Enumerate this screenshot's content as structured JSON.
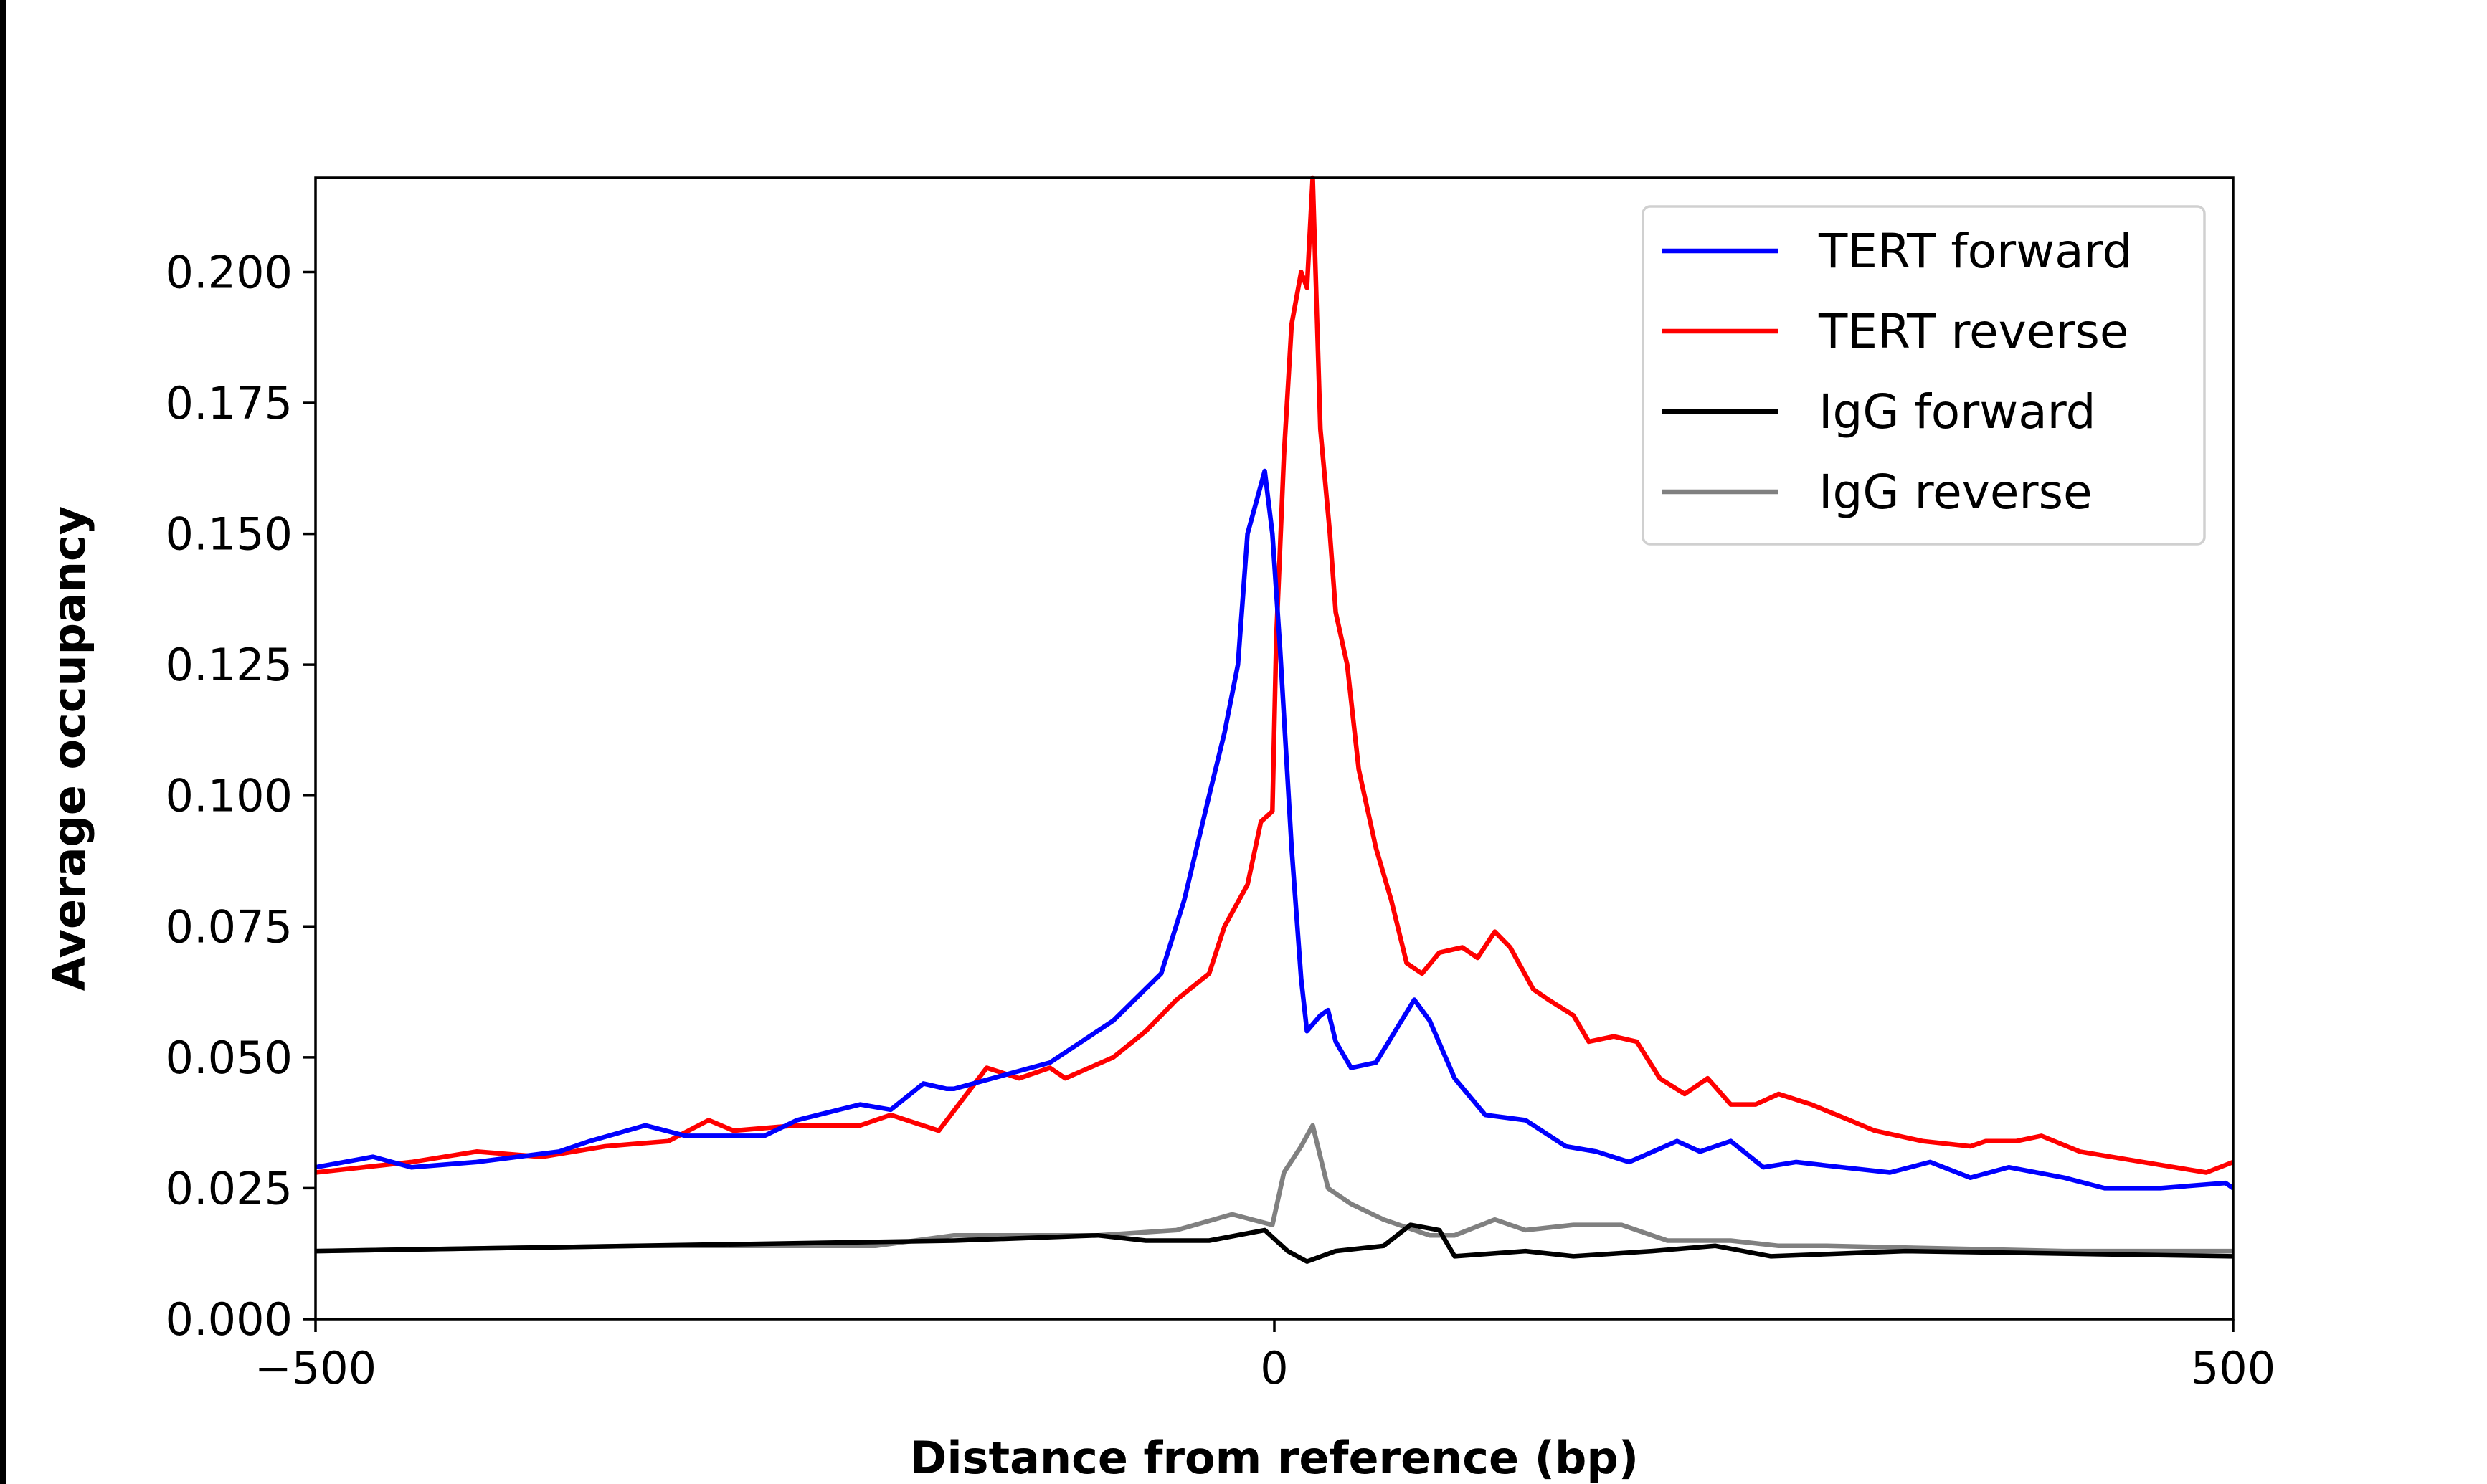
{
  "chart_data": {
    "type": "line",
    "title": "",
    "xlabel": "Distance from reference (bp)",
    "ylabel": "Average occupancy",
    "xlim": [
      -500,
      500
    ],
    "ylim": [
      0,
      0.218
    ],
    "xticks": [
      -500,
      0,
      500
    ],
    "xtick_labels": [
      "−500",
      "0",
      "500"
    ],
    "yticks": [
      0,
      0.025,
      0.05,
      0.075,
      0.1,
      0.125,
      0.15,
      0.175,
      0.2
    ],
    "ytick_labels": [
      "0.000",
      "0.025",
      "0.050",
      "0.075",
      "0.100",
      "0.125",
      "0.150",
      "0.175",
      "0.200"
    ],
    "grid": false,
    "legend_position": "top-right",
    "series": [
      {
        "name": "TERT forward",
        "color": "#0000ff",
        "x": [
          -500,
          -470,
          -450,
          -416,
          -373,
          -357,
          -328,
          -307,
          -266,
          -249,
          -216,
          -200,
          -183,
          -171,
          -167,
          -117,
          -84,
          -59,
          -47,
          -34,
          -26,
          -19,
          -14,
          -5,
          -1,
          3,
          9,
          14,
          17,
          24,
          28,
          32,
          40,
          53,
          63,
          73,
          81,
          94,
          110,
          131,
          152,
          168,
          185,
          210,
          222,
          238,
          255,
          272,
          296,
          321,
          342,
          363,
          383,
          412,
          433,
          462,
          496,
          500
        ],
        "y": [
          0.029,
          0.031,
          0.029,
          0.03,
          0.032,
          0.034,
          0.037,
          0.035,
          0.035,
          0.038,
          0.041,
          0.04,
          0.045,
          0.044,
          0.044,
          0.049,
          0.057,
          0.066,
          0.08,
          0.1,
          0.112,
          0.125,
          0.15,
          0.162,
          0.15,
          0.128,
          0.09,
          0.065,
          0.055,
          0.058,
          0.059,
          0.053,
          0.048,
          0.049,
          0.055,
          0.061,
          0.057,
          0.046,
          0.039,
          0.038,
          0.033,
          0.032,
          0.03,
          0.034,
          0.032,
          0.034,
          0.029,
          0.03,
          0.029,
          0.028,
          0.03,
          0.027,
          0.029,
          0.027,
          0.025,
          0.025,
          0.026,
          0.025
        ]
      },
      {
        "name": "TERT reverse",
        "color": "#ff0000",
        "x": [
          -500,
          -450,
          -416,
          -382,
          -349,
          -316,
          -295,
          -282,
          -249,
          -216,
          -200,
          -175,
          -150,
          -133,
          -117,
          -109,
          -84,
          -67,
          -51,
          -34,
          -26,
          -14,
          -7,
          -1,
          1,
          5,
          9,
          14,
          17,
          20,
          24,
          29,
          32,
          38,
          44,
          53,
          61,
          69,
          77,
          86,
          98,
          106,
          115,
          123,
          135,
          143,
          156,
          164,
          177,
          189,
          201,
          214,
          226,
          238,
          251,
          263,
          280,
          300,
          313,
          338,
          363,
          371,
          387,
          400,
          420,
          453,
          486,
          500
        ],
        "y": [
          0.028,
          0.03,
          0.032,
          0.031,
          0.033,
          0.034,
          0.038,
          0.036,
          0.037,
          0.037,
          0.039,
          0.036,
          0.048,
          0.046,
          0.048,
          0.046,
          0.05,
          0.055,
          0.061,
          0.066,
          0.075,
          0.083,
          0.095,
          0.097,
          0.13,
          0.165,
          0.19,
          0.2,
          0.197,
          0.218,
          0.17,
          0.15,
          0.135,
          0.125,
          0.105,
          0.09,
          0.08,
          0.068,
          0.066,
          0.07,
          0.071,
          0.069,
          0.074,
          0.071,
          0.063,
          0.061,
          0.058,
          0.053,
          0.054,
          0.053,
          0.046,
          0.043,
          0.046,
          0.041,
          0.041,
          0.043,
          0.041,
          0.038,
          0.036,
          0.034,
          0.033,
          0.034,
          0.034,
          0.035,
          0.032,
          0.03,
          0.028,
          0.03
        ]
      },
      {
        "name": "IgG forward",
        "color": "#000000",
        "x": [
          -500,
          -332,
          -167,
          -92,
          -67,
          -34,
          -5,
          7,
          17,
          32,
          57,
          71,
          86,
          94,
          131,
          156,
          197,
          230,
          259,
          329,
          500
        ],
        "y": [
          0.013,
          0.014,
          0.015,
          0.016,
          0.015,
          0.015,
          0.017,
          0.013,
          0.011,
          0.013,
          0.014,
          0.018,
          0.017,
          0.012,
          0.013,
          0.012,
          0.013,
          0.014,
          0.012,
          0.013,
          0.012
        ]
      },
      {
        "name": "IgG reverse",
        "color": "#808080",
        "x": [
          -500,
          -332,
          -208,
          -167,
          -92,
          -51,
          -22,
          -1,
          5,
          14,
          20,
          28,
          40,
          57,
          81,
          94,
          115,
          131,
          156,
          181,
          205,
          238,
          263,
          288,
          412,
          500
        ],
        "y": [
          0.013,
          0.014,
          0.014,
          0.016,
          0.016,
          0.017,
          0.02,
          0.018,
          0.028,
          0.033,
          0.037,
          0.025,
          0.022,
          0.019,
          0.016,
          0.016,
          0.019,
          0.017,
          0.018,
          0.018,
          0.015,
          0.015,
          0.014,
          0.014,
          0.013,
          0.013
        ]
      }
    ]
  }
}
